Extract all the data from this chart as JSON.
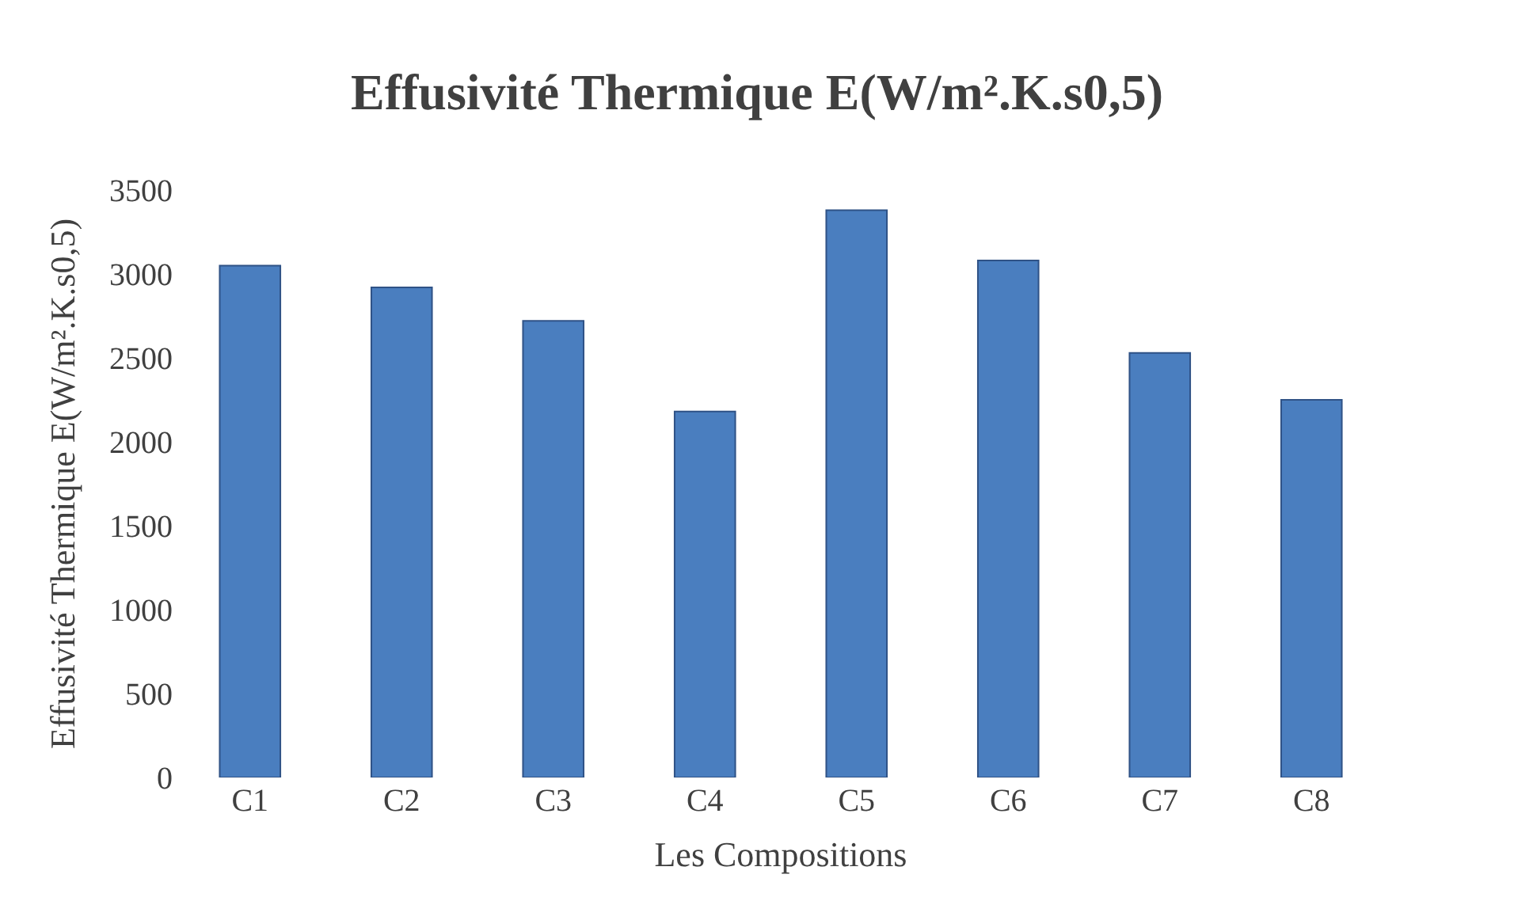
{
  "chart_data": {
    "type": "bar",
    "title": "Effusivité Thermique E(W/m².K.s0,5)",
    "xlabel": "Les Compositions",
    "ylabel": "Effusivité Thermique E(W/m².K.s0,5)",
    "categories": [
      "C1",
      "C2",
      "C3",
      "C4",
      "C5",
      "C6",
      "C7",
      "C8"
    ],
    "values": [
      3050,
      2920,
      2720,
      2180,
      3380,
      3080,
      2530,
      2250
    ],
    "color": "#4a7ebf",
    "ylim": [
      0,
      3500
    ],
    "yticks": [
      0,
      500,
      1000,
      1500,
      2000,
      2500,
      3000,
      3500
    ]
  }
}
